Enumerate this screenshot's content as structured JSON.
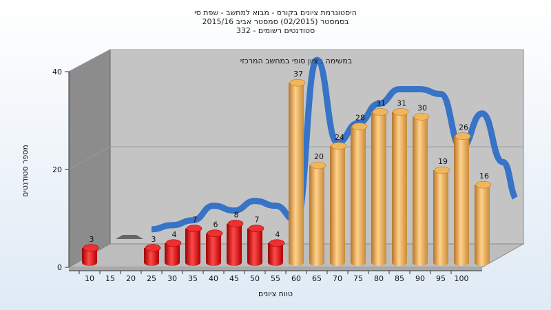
{
  "chart_data": {
    "type": "bar",
    "title_lines": [
      "היסטוגרמת ציונים בקורס - מבוא למחשב - שפת סי",
      "בסמסטר  (02/2015)  סמסטר אביב 2015/16",
      "סטודנטים רשומים - 332"
    ],
    "annotation": "במשימה : ציון סופי במחשב המרכזי",
    "xlabel": "טווח ציונים",
    "ylabel": "מספר סטודנטים",
    "ylim": [
      0,
      40
    ],
    "y_ticks": [
      "0",
      "20",
      "40"
    ],
    "x_ticks": [
      "10",
      "15",
      "20",
      "25",
      "30",
      "35",
      "40",
      "45",
      "50",
      "55",
      "60",
      "65",
      "70",
      "75",
      "80",
      "85",
      "90",
      "95",
      "100"
    ],
    "bars": [
      {
        "x": 10,
        "value": 3,
        "label": "3"
      },
      {
        "x": 20,
        "value": 0,
        "label": "0"
      },
      {
        "x": 25,
        "value": 3,
        "label": "3"
      },
      {
        "x": 30,
        "value": 4,
        "label": "4"
      },
      {
        "x": 35,
        "value": 7,
        "label": "7"
      },
      {
        "x": 40,
        "value": 6,
        "label": "6"
      },
      {
        "x": 45,
        "value": 8,
        "label": "8"
      },
      {
        "x": 50,
        "value": 7,
        "label": "7"
      },
      {
        "x": 55,
        "value": 4,
        "label": "4"
      },
      {
        "x": 60,
        "value": 37,
        "label": "37"
      },
      {
        "x": 65,
        "value": 20,
        "label": "20"
      },
      {
        "x": 70,
        "value": 24,
        "label": "24"
      },
      {
        "x": 75,
        "value": 28,
        "label": "28"
      },
      {
        "x": 80,
        "value": 31,
        "label": "31"
      },
      {
        "x": 85,
        "value": 31,
        "label": "31"
      },
      {
        "x": 90,
        "value": 30,
        "label": "30"
      },
      {
        "x": 95,
        "value": 19,
        "label": "19"
      },
      {
        "x": 100,
        "value": 26,
        "label": "26"
      },
      {
        "x": 105,
        "value": 16,
        "label": "16"
      }
    ],
    "fail_threshold": 55,
    "colors": {
      "fail": "#e01010",
      "pass": "#e6a23c",
      "trend": "#2f6fc6",
      "wall": "#c4c4c4",
      "side_wall": "#8c8c8c",
      "floor": "#bdbdbd"
    },
    "grid": true
  }
}
